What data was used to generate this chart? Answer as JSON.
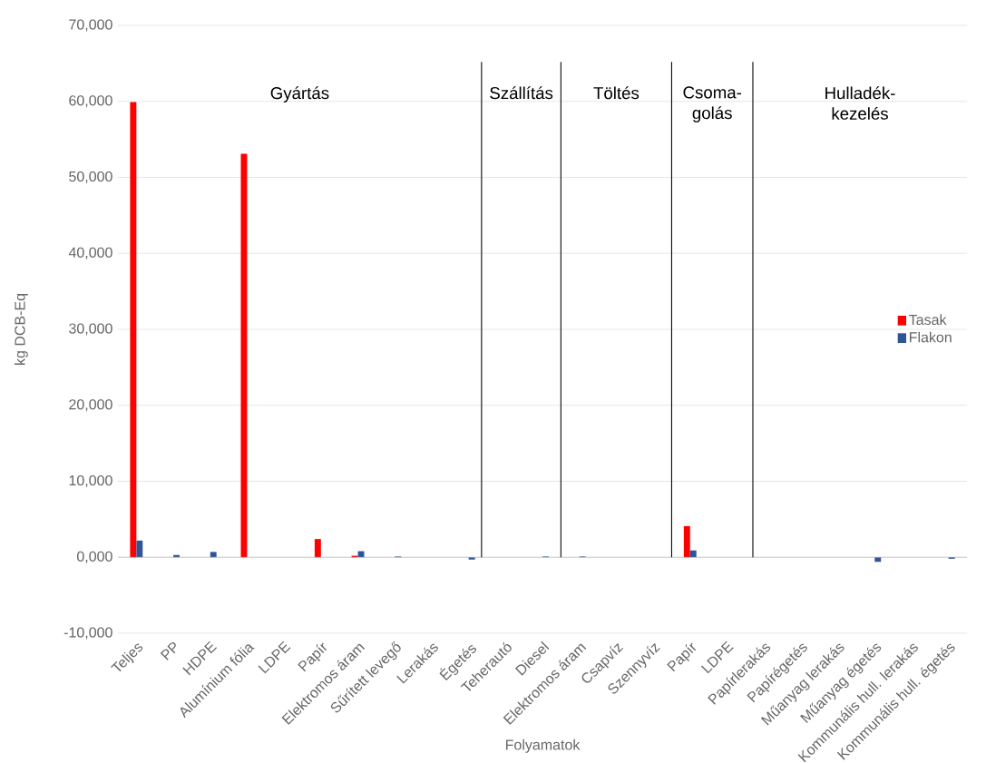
{
  "chart_data": {
    "type": "bar",
    "xlabel": "Folyamatok",
    "ylabel": "kg DCB-Eq",
    "categories": [
      "Teljes",
      "PP",
      "HDPE",
      "Alumínium fólia",
      "LDPE",
      "Papír",
      "Elektromos áram",
      "Sűrített levegő",
      "Lerakás",
      "Égetés",
      "Teherautó",
      "Diesel",
      "Elektromos áram",
      "Csapvíz",
      "Szennyvíz",
      "Papír",
      "LDPE",
      "Papírlerakás",
      "Papírégetés",
      "Műanyag lerakás",
      "Műanyag égetés",
      "Kommunális hull. lerakás",
      "Kommunális hull. égetés"
    ],
    "series": [
      {
        "name": "Tasak",
        "color": "#ff0000",
        "values": [
          59900,
          0,
          0,
          53100,
          0,
          2400,
          200,
          0,
          0,
          0,
          0,
          0,
          0,
          0,
          0,
          4100,
          0,
          0,
          0,
          0,
          0,
          0,
          0
        ]
      },
      {
        "name": "Flakon",
        "color": "#2f5597",
        "values": [
          2200,
          300,
          700,
          0,
          0,
          0,
          800,
          100,
          0,
          -300,
          0,
          100,
          100,
          0,
          0,
          900,
          0,
          0,
          0,
          0,
          -600,
          0,
          -200
        ]
      }
    ],
    "ylim": [
      -10000,
      70000
    ],
    "yticks": [
      {
        "value": -10000,
        "label": "-10,000"
      },
      {
        "value": 0,
        "label": "0,000"
      },
      {
        "value": 10000,
        "label": "10,000"
      },
      {
        "value": 20000,
        "label": "20,000"
      },
      {
        "value": 30000,
        "label": "30,000"
      },
      {
        "value": 40000,
        "label": "40,000"
      },
      {
        "value": 50000,
        "label": "50,000"
      },
      {
        "value": 60000,
        "label": "60,000"
      },
      {
        "value": 70000,
        "label": "70,000"
      }
    ],
    "annotations": [
      "Gyártás",
      "Szállítás",
      "Töltés",
      "Csoma-golás",
      "Hulladék-kezelés"
    ],
    "grid": "y",
    "legend": "right"
  }
}
